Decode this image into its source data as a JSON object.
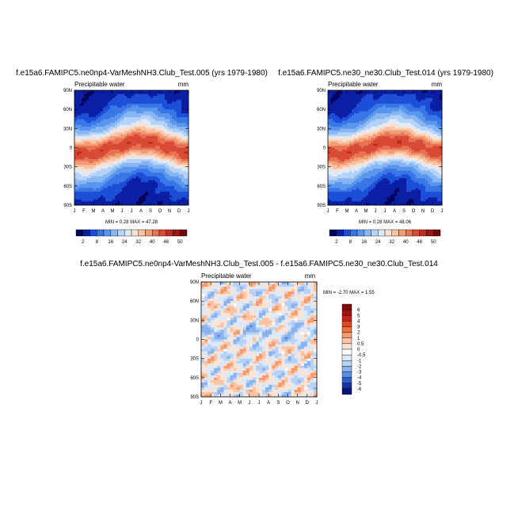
{
  "chart_data": [
    {
      "type": "heatmap",
      "title": "f.e15a6.FAMIPC5.ne0np4-VarMeshNH3.Club_Test.005 (yrs 1979-1980)",
      "variable": "Precipitable water",
      "units": "mm",
      "stats": "MIN =   0.28 MAX =  47.28",
      "x_ticks": [
        "J",
        "F",
        "M",
        "A",
        "M",
        "J",
        "J",
        "A",
        "S",
        "O",
        "N",
        "D",
        "J"
      ],
      "y_ticks": [
        "90N",
        "60N",
        "30N",
        "0",
        "30S",
        "60S",
        "90S"
      ],
      "colorbar": {
        "labels": [
          "2",
          "8",
          "16",
          "24",
          "32",
          "40",
          "46",
          "50"
        ],
        "colors": [
          "#04045f",
          "#0a1fa3",
          "#1d4ed8",
          "#3a77e6",
          "#5a96ee",
          "#86b6f4",
          "#b5d3f7",
          "#dfeafa",
          "#fbe0cf",
          "#f8c2a3",
          "#f29c74",
          "#e87252",
          "#d84a33",
          "#bd2a1f",
          "#981611",
          "#6a0a08"
        ]
      },
      "profile": {
        "lat": [
          -90,
          -75,
          -60,
          -45,
          -30,
          -20,
          -10,
          0,
          10,
          20,
          30,
          45,
          60,
          75,
          90
        ],
        "value": [
          3,
          5,
          8,
          14,
          22,
          32,
          42,
          45,
          42,
          32,
          22,
          14,
          8,
          5,
          3
        ]
      }
    },
    {
      "type": "heatmap",
      "title": "f.e15a6.FAMIPC5.ne30_ne30.Club_Test.014 (yrs 1979-1980)",
      "variable": "Precipitable water",
      "units": "mm",
      "stats": "MIN =   0.28 MAX =  48.06",
      "x_ticks": [
        "J",
        "F",
        "M",
        "A",
        "M",
        "J",
        "J",
        "A",
        "S",
        "O",
        "N",
        "D",
        "J"
      ],
      "y_ticks": [
        "90N",
        "60N",
        "30N",
        "0",
        "30S",
        "60S",
        "90S"
      ],
      "colorbar": {
        "labels": [
          "2",
          "8",
          "16",
          "24",
          "32",
          "40",
          "46",
          "50"
        ]
      }
    },
    {
      "type": "heatmap",
      "title": "f.e15a6.FAMIPC5.ne0np4-VarMeshNH3.Club_Test.005 - f.e15a6.FAMIPC5.ne30_ne30.Club_Test.014",
      "variable": "Precipitable water",
      "units": "mm",
      "stats": "MIN =  -2.70 MAX =   1.55",
      "x_ticks": [
        "J",
        "F",
        "M",
        "A",
        "M",
        "J",
        "J",
        "A",
        "S",
        "O",
        "N",
        "D",
        "J"
      ],
      "y_ticks": [
        "90N",
        "60N",
        "30N",
        "0",
        "30S",
        "60S",
        "90S"
      ],
      "colorbar": {
        "labels": [
          "6",
          "5",
          "4",
          "3",
          "2",
          "1",
          "0.5",
          "0",
          "-0.5",
          "-1",
          "-2",
          "-3",
          "-4",
          "-5",
          "-6"
        ],
        "colors": [
          "#7d0d0d",
          "#a31212",
          "#c72219",
          "#e3451f",
          "#f0703f",
          "#f49a6e",
          "#f8c4a3",
          "#fbe4d5",
          "#ffffff",
          "#dce9f9",
          "#b7d1f4",
          "#8ab2ec",
          "#5b8fe0",
          "#2f5fc8",
          "#1634a0",
          "#07137a"
        ]
      }
    }
  ]
}
